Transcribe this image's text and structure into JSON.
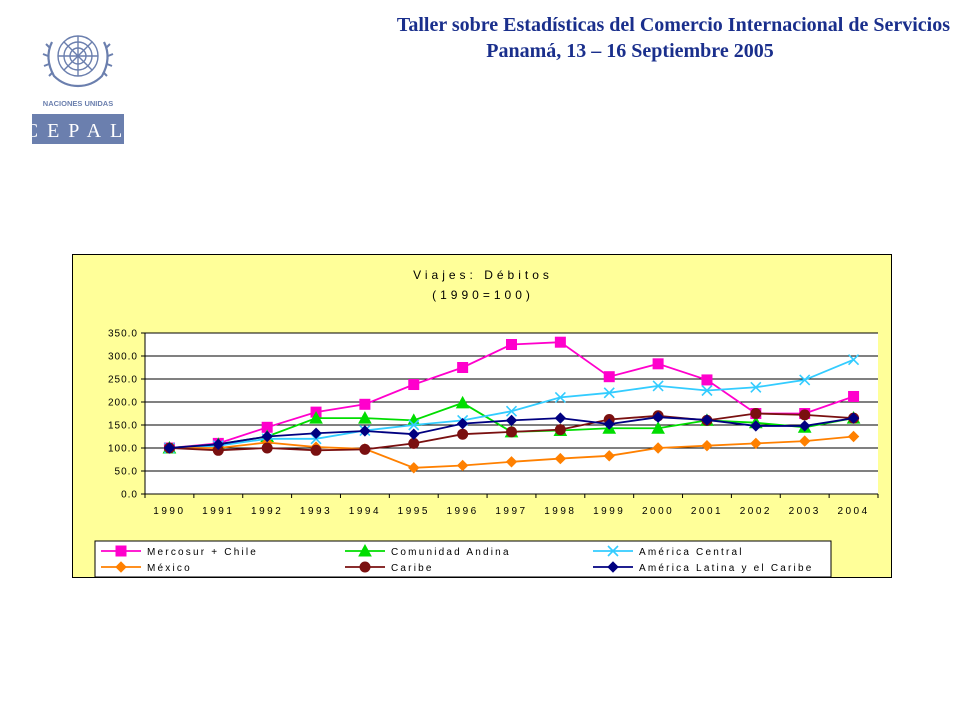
{
  "header": {
    "title_line1": "Taller sobre Estadísticas del Comercio Internacional de Servicios",
    "title_line2": "Panamá, 13 – 16 Septiembre 2005"
  },
  "logo": {
    "line1": "NACIONES UNIDAS",
    "line2": "CEPAL",
    "color": "#6b7fae"
  },
  "chart_data": {
    "type": "line",
    "title": "Viajes: Débitos",
    "subtitle": "(1990=100)",
    "x": [
      "1990",
      "1991",
      "1992",
      "1993",
      "1994",
      "1995",
      "1996",
      "1997",
      "1998",
      "1999",
      "2000",
      "2001",
      "2002",
      "2003",
      "2004"
    ],
    "ylim": [
      0,
      350
    ],
    "yticks": [
      "0.0",
      "50.0",
      "100.0",
      "150.0",
      "200.0",
      "250.0",
      "300.0",
      "350.0"
    ],
    "grid": true,
    "legend_position": "bottom",
    "series": [
      {
        "name": "Mercosur + Chile",
        "color": "#ff00cc",
        "marker": "square",
        "values": [
          100,
          110,
          145,
          178,
          195,
          238,
          275,
          325,
          330,
          255,
          283,
          248,
          175,
          175,
          212
        ]
      },
      {
        "name": "Comunidad Andina",
        "color": "#00dd00",
        "marker": "triangle",
        "values": [
          100,
          108,
          125,
          165,
          165,
          160,
          198,
          135,
          138,
          143,
          143,
          160,
          155,
          145,
          165
        ]
      },
      {
        "name": "América Central",
        "color": "#33ccff",
        "marker": "x",
        "values": [
          100,
          105,
          120,
          120,
          138,
          150,
          160,
          180,
          210,
          220,
          235,
          225,
          232,
          248,
          292
        ]
      },
      {
        "name": "México",
        "color": "#ff8000",
        "marker": "diamond",
        "values": [
          100,
          100,
          112,
          102,
          98,
          57,
          62,
          70,
          77,
          83,
          100,
          105,
          110,
          115,
          125
        ]
      },
      {
        "name": "Caribe",
        "color": "#7a1010",
        "marker": "circle",
        "values": [
          100,
          95,
          100,
          95,
          97,
          110,
          130,
          135,
          140,
          162,
          170,
          160,
          175,
          172,
          165
        ]
      },
      {
        "name": "América Latina y el Caribe",
        "color": "#000080",
        "marker": "diamond",
        "values": [
          100,
          108,
          125,
          132,
          137,
          130,
          153,
          160,
          165,
          152,
          167,
          161,
          148,
          148,
          165
        ]
      }
    ]
  }
}
